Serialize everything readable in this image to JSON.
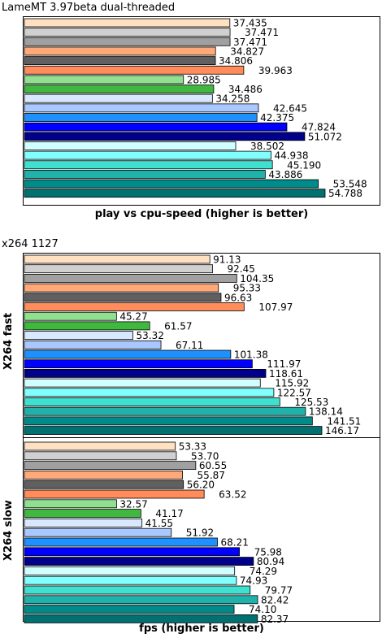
{
  "colors": [
    "#ffe0c0",
    "#d0d0d0",
    "#a0a0a0",
    "#ffa878",
    "#606060",
    "#ff8c5a",
    "#90e090",
    "#40b840",
    "#d8e8ff",
    "#a8c8ff",
    "#1e90ff",
    "#0000ff",
    "#00008b",
    "#d0ffff",
    "#80ffff",
    "#40e0d0",
    "#20b2aa",
    "#008b8b",
    "#007070"
  ],
  "chart_data": [
    {
      "type": "bar",
      "title": "LameMT 3.97beta dual-threaded",
      "xlabel": "play vs cpu-speed (higher is better)",
      "ylabel": "",
      "value_labels": [
        "37.435",
        "37.471",
        "37.471",
        "34.827",
        "34.806",
        "39.963",
        "28.985",
        "34.486",
        "34.258",
        "42.645",
        "42.375",
        "47.824",
        "51.072",
        "38.502",
        "44.938",
        "45.190",
        "43.886",
        "53.548",
        "54.788"
      ],
      "values": [
        37.435,
        37.471,
        37.471,
        34.827,
        34.806,
        39.963,
        28.985,
        34.486,
        34.258,
        42.645,
        42.375,
        47.824,
        51.072,
        38.502,
        44.938,
        45.19,
        43.886,
        53.548,
        54.788
      ],
      "grid": false
    },
    {
      "type": "bar",
      "title": "x264 1127",
      "xlabel": "",
      "ylabel": "X264 fast",
      "value_labels": [
        "91.13",
        "92.45",
        "104.35",
        "95.33",
        "96.63",
        "107.97",
        "45.27",
        "61.57",
        "53.32",
        "67.11",
        "101.38",
        "111.97",
        "118.61",
        "115.92",
        "122.57",
        "125.53",
        "138.14",
        "141.51",
        "146.17"
      ],
      "values": [
        91.13,
        92.45,
        104.35,
        95.33,
        96.63,
        107.97,
        45.27,
        61.57,
        53.32,
        67.11,
        101.38,
        111.97,
        118.61,
        115.92,
        122.57,
        125.53,
        138.14,
        141.51,
        146.17
      ],
      "grid": false
    },
    {
      "type": "bar",
      "title": "",
      "xlabel": "fps (higher is better)",
      "ylabel": "X264 slow",
      "value_labels": [
        "53.33",
        "53.70",
        "60.55",
        "55.87",
        "56.20",
        "63.52",
        "32.57",
        "41.17",
        "41.55",
        "51.92",
        "68.21",
        "75.98",
        "80.94",
        "74.29",
        "74.93",
        "79.77",
        "82.42",
        "74.10",
        "82.37"
      ],
      "values": [
        53.33,
        53.7,
        60.55,
        55.87,
        56.2,
        63.52,
        32.57,
        41.17,
        41.55,
        51.92,
        68.21,
        75.98,
        80.94,
        74.29,
        74.93,
        79.77,
        82.42,
        74.1,
        82.37
      ],
      "grid": false
    }
  ]
}
